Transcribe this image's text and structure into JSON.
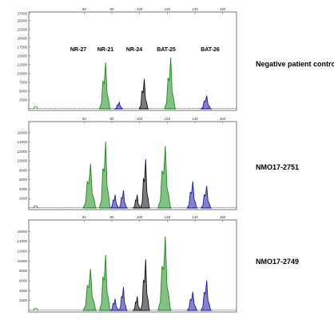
{
  "chart_data": [
    {
      "type": "line",
      "sample_label": "Negative patient control",
      "xlim": [
        20,
        170
      ],
      "x_ticks": [
        "60",
        "80",
        "100",
        "120",
        "140",
        "160"
      ],
      "ylim": [
        0,
        27000
      ],
      "y_ticks": [
        "2500",
        "5000",
        "7500",
        "10000",
        "12500",
        "15000",
        "17500",
        "20000",
        "22500",
        "25000",
        "27000"
      ],
      "marker_labels": [
        "NR-27",
        "NR-21",
        "NR-24",
        "BAT-25",
        "BAT-26"
      ],
      "colors": {
        "green": "#1e8c1e",
        "blue": "#1c1ca8",
        "black": "#111111"
      },
      "peaks": [
        {
          "marker": "NR-27",
          "color": "green",
          "x": 75,
          "height": 14000,
          "width": 2.2
        },
        {
          "marker": "NR-21",
          "color": "blue",
          "x": 85,
          "height": 2000,
          "width": 1.6
        },
        {
          "marker": "NR-24",
          "color": "black",
          "x": 103,
          "height": 9000,
          "width": 1.8
        },
        {
          "marker": "BAT-25",
          "color": "green",
          "x": 122,
          "height": 15500,
          "width": 2.2
        },
        {
          "marker": "BAT-26",
          "color": "blue",
          "x": 148,
          "height": 4000,
          "width": 2.0
        }
      ]
    },
    {
      "type": "line",
      "sample_label": "NMO17-2751",
      "xlim": [
        20,
        170
      ],
      "x_ticks": [
        "60",
        "80",
        "100",
        "120",
        "140",
        "160"
      ],
      "ylim": [
        0,
        18000
      ],
      "y_ticks": [
        "2000",
        "4000",
        "6000",
        "8000",
        "10000",
        "12000",
        "14000",
        "16000"
      ],
      "colors": {
        "green": "#1e8c1e",
        "blue": "#1c1ca8",
        "black": "#111111"
      },
      "peaks": [
        {
          "marker": "NR-27",
          "color": "green",
          "x": 64,
          "height": 10000,
          "width": 2.6
        },
        {
          "marker": "NR-27",
          "color": "green",
          "x": 75,
          "height": 15000,
          "width": 2.2
        },
        {
          "marker": "NR-21",
          "color": "blue",
          "x": 82,
          "height": 3000,
          "width": 1.6
        },
        {
          "marker": "NR-21",
          "color": "blue",
          "x": 88,
          "height": 4000,
          "width": 1.6
        },
        {
          "marker": "NR-24",
          "color": "black",
          "x": 98,
          "height": 3000,
          "width": 1.4
        },
        {
          "marker": "NR-24",
          "color": "black",
          "x": 104,
          "height": 11000,
          "width": 1.8
        },
        {
          "marker": "BAT-25",
          "color": "green",
          "x": 118,
          "height": 14000,
          "width": 2.6
        },
        {
          "marker": "BAT-26",
          "color": "blue",
          "x": 138,
          "height": 6000,
          "width": 2.0
        },
        {
          "marker": "BAT-26",
          "color": "blue",
          "x": 148,
          "height": 5000,
          "width": 2.0
        }
      ]
    },
    {
      "type": "line",
      "sample_label": "NMO17-2749",
      "xlim": [
        20,
        170
      ],
      "x_ticks": [
        "60",
        "80",
        "100",
        "120",
        "140",
        "160"
      ],
      "ylim": [
        0,
        18000
      ],
      "y_ticks": [
        "2000",
        "4000",
        "6000",
        "8000",
        "10000",
        "12000",
        "14000",
        "16000"
      ],
      "colors": {
        "green": "#1e8c1e",
        "blue": "#1c1ca8",
        "black": "#111111"
      },
      "peaks": [
        {
          "marker": "NR-27",
          "color": "green",
          "x": 64,
          "height": 9000,
          "width": 2.6
        },
        {
          "marker": "NR-27",
          "color": "green",
          "x": 75,
          "height": 12000,
          "width": 2.2
        },
        {
          "marker": "NR-21",
          "color": "blue",
          "x": 82,
          "height": 2500,
          "width": 1.6
        },
        {
          "marker": "NR-21",
          "color": "blue",
          "x": 88,
          "height": 5000,
          "width": 1.6
        },
        {
          "marker": "NR-24",
          "color": "black",
          "x": 98,
          "height": 3000,
          "width": 1.4
        },
        {
          "marker": "NR-24",
          "color": "black",
          "x": 104,
          "height": 11000,
          "width": 1.8
        },
        {
          "marker": "BAT-25",
          "color": "green",
          "x": 118,
          "height": 16000,
          "width": 2.6
        },
        {
          "marker": "BAT-26",
          "color": "blue",
          "x": 138,
          "height": 4000,
          "width": 2.0
        },
        {
          "marker": "BAT-26",
          "color": "blue",
          "x": 148,
          "height": 6500,
          "width": 2.0
        }
      ]
    }
  ]
}
